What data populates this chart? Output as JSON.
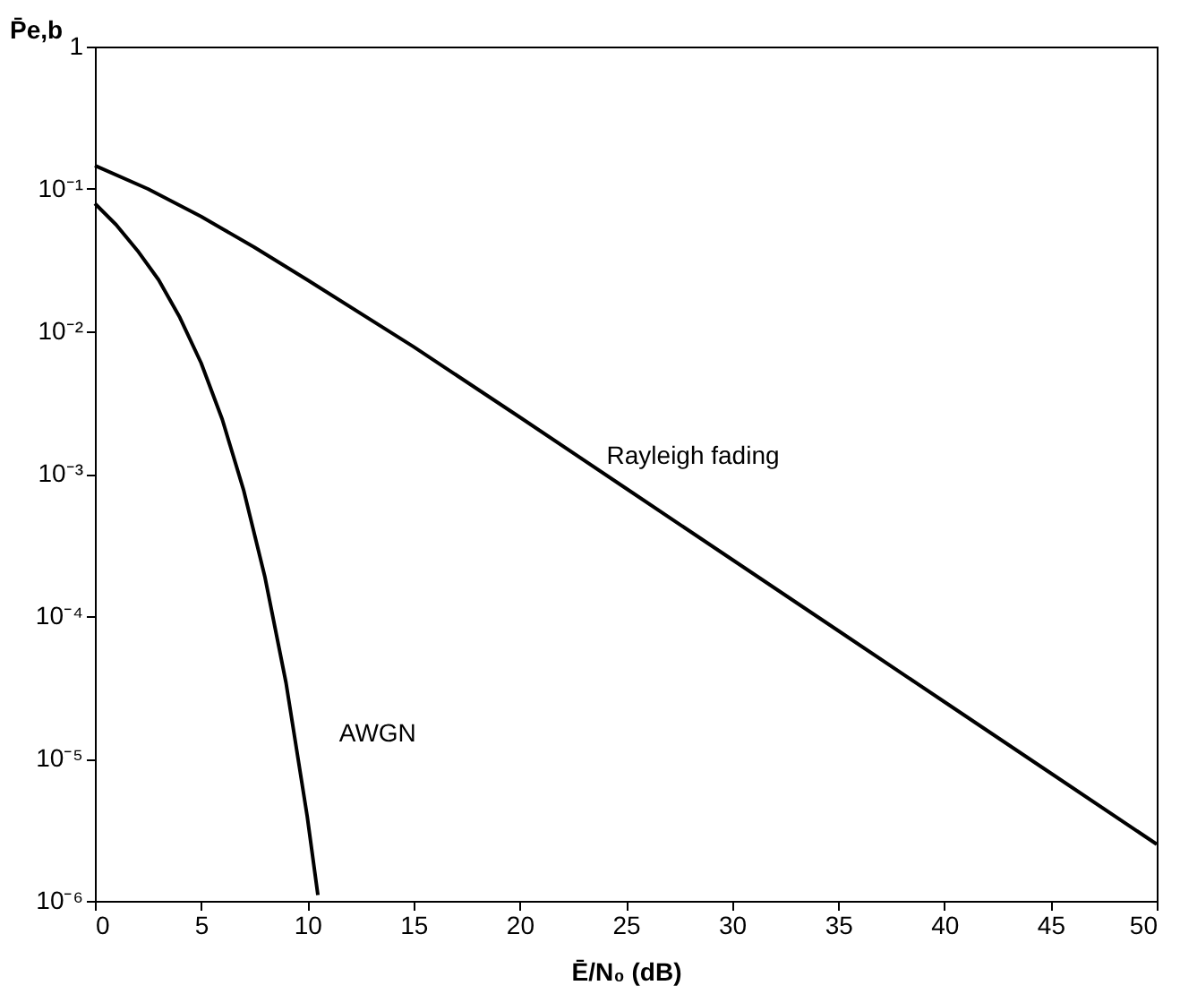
{
  "chart_data": {
    "type": "line",
    "xlabel": "Ē/N₀ (dB)",
    "ylabel": "P̄e,b",
    "log": "y",
    "grid": false,
    "marker": "none",
    "line_style": "solid",
    "xlim": [
      0,
      50
    ],
    "xticks": [
      0,
      5,
      10,
      15,
      20,
      25,
      30,
      35,
      40,
      45,
      50
    ],
    "ylim": [
      1e-06,
      1
    ],
    "yticks": [
      {
        "value": 1e-06,
        "label": "10⁻⁶"
      },
      {
        "value": 1e-05,
        "label": "10⁻⁵"
      },
      {
        "value": 0.0001,
        "label": "10⁻⁴"
      },
      {
        "value": 0.001,
        "label": "10⁻³"
      },
      {
        "value": 0.01,
        "label": "10⁻²"
      },
      {
        "value": 0.1,
        "label": "10⁻¹"
      },
      {
        "value": 1,
        "label": "1"
      }
    ],
    "series": [
      {
        "color": "#000000",
        "x": [
          0,
          1,
          2,
          3,
          4,
          5,
          6,
          7,
          8,
          9,
          10,
          10.5
        ],
        "values": [
          0.079,
          0.056,
          0.037,
          0.023,
          0.0125,
          0.006,
          0.0024,
          0.00077,
          0.00019,
          3.4e-05,
          3.9e-06,
          1.1e-06
        ]
      },
      {
        "color": "#000000",
        "x": [
          0,
          2.5,
          5,
          7.5,
          10,
          15,
          20,
          25,
          30,
          35,
          40,
          45,
          50
        ],
        "values": [
          0.146,
          0.1,
          0.064,
          0.039,
          0.023,
          0.0078,
          0.0025,
          0.00079,
          0.00025,
          7.9e-05,
          2.5e-05,
          7.9e-06,
          2.5e-06
        ]
      }
    ],
    "annotations": [
      "Rayleigh fading",
      "AWGN"
    ]
  }
}
